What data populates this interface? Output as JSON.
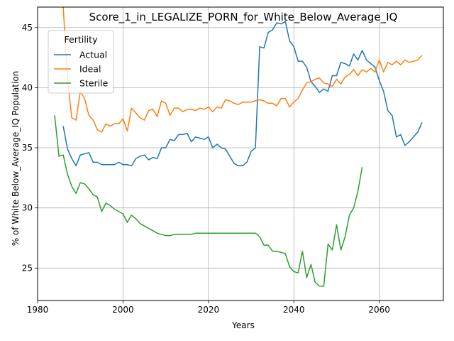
{
  "chart_data": {
    "type": "line",
    "title": "Score_1_in_LEGALIZE_PORN_for_White_Below_Average_IQ",
    "xlabel": "Years",
    "ylabel": "% of White Below_Average_IQ Population",
    "xlim": [
      1980,
      2075
    ],
    "ylim": [
      22.3,
      46.7
    ],
    "xticks": [
      1980,
      2000,
      2020,
      2040,
      2060
    ],
    "yticks": [
      25,
      30,
      35,
      40,
      45
    ],
    "grid": true,
    "legend": {
      "title": "Fertility",
      "placement": "top-left"
    },
    "series": [
      {
        "name": "Actual",
        "color": "#1f77b4",
        "x": [
          1986,
          1987,
          1988,
          1989,
          1990,
          1991,
          1992,
          1993,
          1994,
          1995,
          1996,
          1997,
          1998,
          1999,
          2000,
          2001,
          2002,
          2003,
          2004,
          2005,
          2006,
          2007,
          2008,
          2009,
          2010,
          2011,
          2012,
          2013,
          2014,
          2015,
          2016,
          2017,
          2018,
          2019,
          2020,
          2021,
          2022,
          2023,
          2024,
          2025,
          2026,
          2027,
          2028,
          2029,
          2030,
          2031,
          2032,
          2033,
          2034,
          2035,
          2036,
          2037,
          2038,
          2039,
          2040,
          2041,
          2042,
          2043,
          2044,
          2045,
          2046,
          2047,
          2048,
          2049,
          2050,
          2051,
          2052,
          2053,
          2054,
          2055,
          2056,
          2057,
          2058,
          2059,
          2060,
          2061,
          2062,
          2063,
          2064,
          2065,
          2066,
          2067,
          2068,
          2069,
          2070
        ],
        "y": [
          36.8,
          34.9,
          34.1,
          33.5,
          34.4,
          34.5,
          34.6,
          33.8,
          33.8,
          33.6,
          33.6,
          33.6,
          33.6,
          33.8,
          33.6,
          33.6,
          33.5,
          34.1,
          34.3,
          34.4,
          34.0,
          34.2,
          34.1,
          35.0,
          35.0,
          35.7,
          35.6,
          36.1,
          36.1,
          36.2,
          35.5,
          35.9,
          35.8,
          35.7,
          35.9,
          35.0,
          35.3,
          35.0,
          34.9,
          34.3,
          33.7,
          33.5,
          33.5,
          33.8,
          34.7,
          35.0,
          43.4,
          43.3,
          44.6,
          44.8,
          45.4,
          45.3,
          45.5,
          43.9,
          43.4,
          42.2,
          42.2,
          41.7,
          40.5,
          40.1,
          39.6,
          39.9,
          39.7,
          41.0,
          41.0,
          42.1,
          42.0,
          41.8,
          42.8,
          42.3,
          43.1,
          42.3,
          42.0,
          41.7,
          40.6,
          39.7,
          38.1,
          37.7,
          35.9,
          36.1,
          35.2,
          35.5,
          35.9,
          36.3,
          37.1
        ]
      },
      {
        "name": "Ideal",
        "color": "#ff7f0e",
        "x": [
          1986,
          1987,
          1988,
          1989,
          1990,
          1991,
          1992,
          1993,
          1994,
          1995,
          1996,
          1997,
          1998,
          1999,
          2000,
          2001,
          2002,
          2003,
          2004,
          2005,
          2006,
          2007,
          2008,
          2009,
          2010,
          2011,
          2012,
          2013,
          2014,
          2015,
          2016,
          2017,
          2018,
          2019,
          2020,
          2021,
          2022,
          2023,
          2024,
          2025,
          2026,
          2027,
          2028,
          2029,
          2030,
          2031,
          2032,
          2033,
          2034,
          2035,
          2036,
          2037,
          2038,
          2039,
          2040,
          2041,
          2042,
          2043,
          2044,
          2045,
          2046,
          2047,
          2048,
          2049,
          2050,
          2051,
          2052,
          2053,
          2054,
          2055,
          2056,
          2057,
          2058,
          2059,
          2060,
          2061,
          2062,
          2063,
          2064,
          2065,
          2066,
          2067,
          2068,
          2069,
          2070
        ],
        "y": [
          46.7,
          40.7,
          37.5,
          37.3,
          39.7,
          39.1,
          37.7,
          37.3,
          36.5,
          36.3,
          37.0,
          36.8,
          37.0,
          37.0,
          37.4,
          36.4,
          38.3,
          37.9,
          37.5,
          37.3,
          38.1,
          38.2,
          37.6,
          38.9,
          38.7,
          37.7,
          38.3,
          38.3,
          38.0,
          38.2,
          38.2,
          38.1,
          38.3,
          38.2,
          38.4,
          38.0,
          38.4,
          38.3,
          39.0,
          38.9,
          38.7,
          38.6,
          38.8,
          38.8,
          38.8,
          38.9,
          39.0,
          38.9,
          38.7,
          38.7,
          38.5,
          39.1,
          39.1,
          38.4,
          38.8,
          39.1,
          39.8,
          40.4,
          40.5,
          40.7,
          40.8,
          40.4,
          40.3,
          40.1,
          40.7,
          40.3,
          40.9,
          41.1,
          41.5,
          41.0,
          41.5,
          41.3,
          41.6,
          41.3,
          42.3,
          41.3,
          42.1,
          41.9,
          42.2,
          41.9,
          42.3,
          42.1,
          42.2,
          42.3,
          42.7
        ]
      },
      {
        "name": "Sterile",
        "color": "#2ca02c",
        "x": [
          1984,
          1985,
          1986,
          1987,
          1988,
          1989,
          1990,
          1991,
          1992,
          1993,
          1994,
          1995,
          1996,
          1997,
          1998,
          1999,
          2000,
          2001,
          2002,
          2003,
          2004,
          2005,
          2006,
          2007,
          2008,
          2009,
          2010,
          2011,
          2012,
          2013,
          2014,
          2015,
          2016,
          2017,
          2018,
          2019,
          2020,
          2021,
          2022,
          2023,
          2024,
          2025,
          2026,
          2027,
          2028,
          2029,
          2030,
          2031,
          2032,
          2033,
          2034,
          2035,
          2036,
          2037,
          2038,
          2039,
          2040,
          2041,
          2042,
          2043,
          2044,
          2045,
          2046,
          2047,
          2048,
          2049,
          2050,
          2051,
          2052,
          2053,
          2054,
          2055,
          2056
        ],
        "y": [
          37.7,
          34.3,
          34.4,
          32.8,
          31.8,
          31.2,
          32.1,
          32.0,
          31.6,
          31.1,
          30.9,
          29.7,
          30.4,
          30.2,
          29.9,
          29.7,
          29.5,
          28.8,
          29.4,
          29.1,
          28.7,
          28.5,
          28.3,
          28.1,
          27.9,
          27.8,
          27.7,
          27.7,
          27.8,
          27.8,
          27.8,
          27.8,
          27.8,
          27.9,
          27.9,
          27.9,
          27.9,
          27.9,
          27.9,
          27.9,
          27.9,
          27.9,
          27.9,
          27.9,
          27.9,
          27.9,
          27.9,
          27.9,
          27.6,
          26.9,
          26.9,
          26.4,
          26.4,
          26.3,
          26.2,
          25.1,
          24.7,
          24.6,
          26.4,
          24.2,
          25.3,
          23.8,
          23.5,
          23.5,
          27.0,
          26.5,
          28.6,
          26.5,
          27.6,
          29.4,
          30.0,
          31.4,
          33.4
        ]
      }
    ]
  }
}
